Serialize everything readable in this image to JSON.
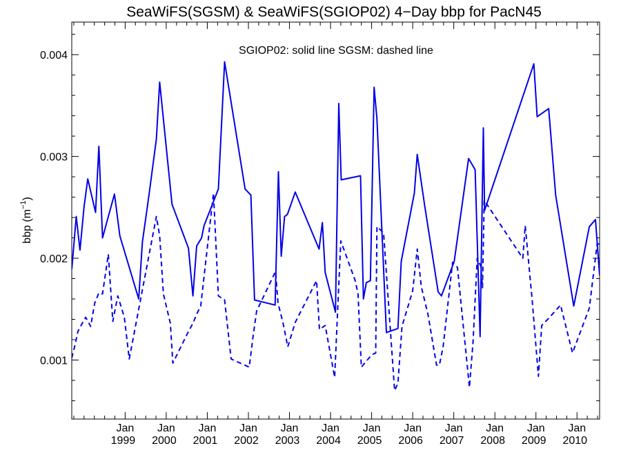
{
  "chart_data": {
    "type": "line",
    "title": "SeaWiFS(SGSM) & SeaWiFS(SGIOP02) 4−Day bbp for PacN45",
    "annotation": "SGIOP02: solid line   SGSM: dashed line",
    "ylabel": {
      "main": "bbp (m",
      "superscript": "−1",
      "suffix": ")"
    },
    "xlabel": "",
    "xlim": [
      1997.7,
      2010.55
    ],
    "ylim": [
      0.00042,
      0.00432
    ],
    "y_ticks": [
      {
        "value": 0.001,
        "label": "0.001"
      },
      {
        "value": 0.002,
        "label": "0.002"
      },
      {
        "value": 0.003,
        "label": "0.003"
      },
      {
        "value": 0.004,
        "label": "0.004"
      }
    ],
    "y_minor_step": 0.0002,
    "x_ticks": [
      {
        "value": 1999.0,
        "month": "Jan",
        "year": "1999"
      },
      {
        "value": 2000.0,
        "month": "Jan",
        "year": "2000"
      },
      {
        "value": 2001.0,
        "month": "Jan",
        "year": "2001"
      },
      {
        "value": 2002.0,
        "month": "Jan",
        "year": "2002"
      },
      {
        "value": 2003.0,
        "month": "Jan",
        "year": "2003"
      },
      {
        "value": 2004.0,
        "month": "Jan",
        "year": "2004"
      },
      {
        "value": 2005.0,
        "month": "Jan",
        "year": "2005"
      },
      {
        "value": 2006.0,
        "month": "Jan",
        "year": "2006"
      },
      {
        "value": 2007.0,
        "month": "Jan",
        "year": "2007"
      },
      {
        "value": 2008.0,
        "month": "Jan",
        "year": "2008"
      },
      {
        "value": 2009.0,
        "month": "Jan",
        "year": "2009"
      },
      {
        "value": 2010.0,
        "month": "Jan",
        "year": "2010"
      }
    ],
    "x_minor_step": 0.25,
    "grid": false,
    "series": [
      {
        "style": "solid",
        "color": "#0000e6",
        "x": [
          1997.7,
          1997.81,
          1997.9,
          1998.0,
          1998.09,
          1998.28,
          1998.36,
          1998.45,
          1998.57,
          1998.74,
          1998.87,
          1999.33,
          1999.42,
          1999.58,
          1999.76,
          1999.84,
          2000.14,
          2000.54,
          2000.65,
          2000.74,
          2000.86,
          2000.92,
          2001.27,
          2001.42,
          2001.92,
          2002.06,
          2002.15,
          2002.65,
          2002.73,
          2002.8,
          2002.88,
          2002.95,
          2003.14,
          2003.72,
          2003.8,
          2003.87,
          2004.12,
          2004.2,
          2004.26,
          2004.73,
          2004.8,
          2004.87,
          2004.97,
          2005.06,
          2005.13,
          2005.36,
          2005.64,
          2005.72,
          2006.04,
          2006.11,
          2006.29,
          2006.62,
          2006.7,
          2007.01,
          2007.36,
          2007.52,
          2007.64,
          2007.72,
          2007.75,
          2008.95,
          2009.03,
          2009.31,
          2009.48,
          2009.92,
          2010.3,
          2010.45,
          2010.55
        ],
        "y": [
          0.00189,
          0.00241,
          0.00208,
          0.00251,
          0.00278,
          0.00245,
          0.0031,
          0.0022,
          0.00238,
          0.00263,
          0.00222,
          0.0016,
          0.00216,
          0.00262,
          0.00317,
          0.00373,
          0.00253,
          0.0021,
          0.00163,
          0.00212,
          0.0022,
          0.00232,
          0.00268,
          0.00393,
          0.00268,
          0.00262,
          0.00159,
          0.00154,
          0.00285,
          0.00202,
          0.00241,
          0.00243,
          0.00265,
          0.00209,
          0.00235,
          0.00186,
          0.00147,
          0.00352,
          0.00277,
          0.00281,
          0.0016,
          0.00176,
          0.00178,
          0.00368,
          0.00337,
          0.00127,
          0.00131,
          0.00197,
          0.00264,
          0.00302,
          0.00252,
          0.00167,
          0.00163,
          0.00197,
          0.00298,
          0.00287,
          0.00123,
          0.00328,
          0.00247,
          0.00391,
          0.00339,
          0.00347,
          0.00262,
          0.00153,
          0.00231,
          0.00238,
          0.00183
        ]
      },
      {
        "style": "dashed",
        "color": "#0000e6",
        "x": [
          1997.7,
          1997.78,
          1997.85,
          1997.94,
          1998.04,
          1998.16,
          1998.26,
          1998.36,
          1998.45,
          1998.59,
          1998.7,
          1998.82,
          1998.98,
          1999.1,
          1999.76,
          1999.84,
          1999.93,
          2000.1,
          2000.16,
          2000.54,
          2000.65,
          2000.74,
          2000.84,
          2001.15,
          2001.27,
          2001.42,
          2001.58,
          2002.02,
          2002.11,
          2002.2,
          2002.66,
          2002.72,
          2002.84,
          2002.96,
          2003.14,
          2003.66,
          2003.73,
          2003.87,
          2004.1,
          2004.2,
          2004.25,
          2004.6,
          2004.67,
          2004.75,
          2005.0,
          2005.1,
          2005.13,
          2005.29,
          2005.56,
          2005.64,
          2005.74,
          2006.0,
          2006.11,
          2006.21,
          2006.37,
          2006.58,
          2006.65,
          2006.74,
          2006.97,
          2007.09,
          2007.38,
          2007.47,
          2007.57,
          2007.66,
          2007.7,
          2007.74,
          2008.68,
          2008.74,
          2008.91,
          2009.06,
          2009.14,
          2009.31,
          2009.6,
          2009.89,
          2010.3,
          2010.49,
          2010.55
        ],
        "y": [
          0.00102,
          0.00115,
          0.00128,
          0.00135,
          0.00142,
          0.00133,
          0.00156,
          0.00166,
          0.00165,
          0.00204,
          0.00138,
          0.00163,
          0.00142,
          0.00101,
          0.00241,
          0.00222,
          0.00165,
          0.00136,
          0.00097,
          0.00128,
          0.00136,
          0.00145,
          0.00153,
          0.00264,
          0.00163,
          0.00159,
          0.00101,
          0.00093,
          0.00122,
          0.00148,
          0.00187,
          0.00156,
          0.00137,
          0.00113,
          0.00137,
          0.00178,
          0.0013,
          0.00134,
          0.00083,
          0.00174,
          0.00217,
          0.00178,
          0.00165,
          0.00093,
          0.00105,
          0.00107,
          0.00231,
          0.00225,
          0.0007,
          0.00077,
          0.00133,
          0.00168,
          0.00209,
          0.00172,
          0.00145,
          0.00095,
          0.00095,
          0.00113,
          0.00196,
          0.00191,
          0.00073,
          0.00118,
          0.002,
          0.00192,
          0.00171,
          0.00257,
          0.002,
          0.00232,
          0.00158,
          0.00084,
          0.00134,
          0.00141,
          0.00154,
          0.00107,
          0.00151,
          0.00214,
          0.00214
        ]
      }
    ]
  }
}
